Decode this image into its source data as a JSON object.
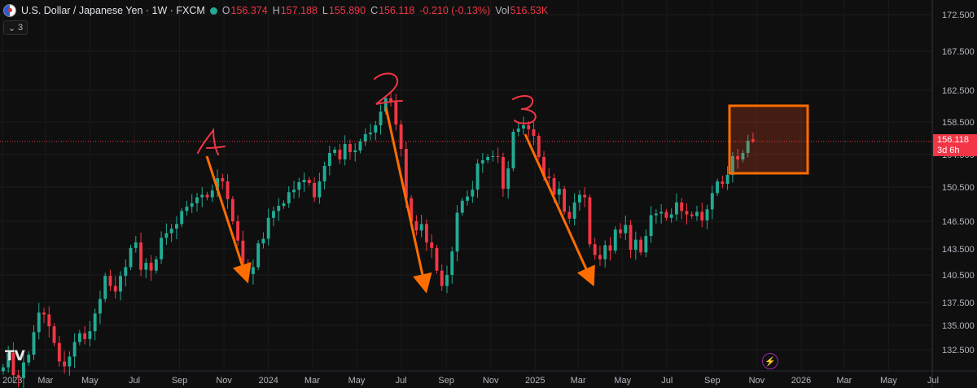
{
  "header": {
    "symbol": "U.S. Dollar / Japanese Yen · 1W · FXCM",
    "open_label": "O",
    "open": "156.374",
    "high_label": "H",
    "high": "157.188",
    "low_label": "L",
    "low": "155.890",
    "close_label": "C",
    "close": "156.118",
    "change": "-0.210 (-0.13%)",
    "vol_label": "Vol",
    "vol": "516.53K"
  },
  "indicator_toggle": {
    "count": "3"
  },
  "price_tag": {
    "price": "156.118",
    "countdown": "3d 6h"
  },
  "logo": {
    "text": "TV"
  },
  "annotations": {
    "labels": [
      "1",
      "2",
      "3"
    ]
  },
  "colors": {
    "up": "#22ab94",
    "down": "#f23645",
    "arrow": "#ff6d00",
    "box": "#ff6d00",
    "background": "#0f0f0f"
  },
  "chart_data": {
    "type": "candlestick",
    "title": "U.S. Dollar / Japanese Yen · 1W · FXCM",
    "y_ticks": [
      172.5,
      167.5,
      162.5,
      158.5,
      154.5,
      150.5,
      146.5,
      143.5,
      140.5,
      137.5,
      135.0,
      132.5
    ],
    "y_tick_labels": [
      "172.500",
      "167.500",
      "162.500",
      "158.500",
      "154.500",
      "150.500",
      "146.500",
      "143.500",
      "140.500",
      "137.500",
      "135.000",
      "132.500"
    ],
    "x_tick_labels": [
      "2023",
      "Mar",
      "May",
      "Jul",
      "Sep",
      "Nov",
      "2024",
      "Mar",
      "May",
      "Jul",
      "Sep",
      "Nov",
      "2025",
      "Mar",
      "May",
      "Jul",
      "Sep",
      "Nov",
      "2026",
      "Mar",
      "May",
      "Jul"
    ],
    "x_tick_dates": [
      "2023-01-01",
      "2023-03-01",
      "2023-05-01",
      "2023-07-01",
      "2023-09-01",
      "2023-11-01",
      "2024-01-01",
      "2024-03-01",
      "2024-05-01",
      "2024-07-01",
      "2024-09-01",
      "2024-11-01",
      "2025-01-01",
      "2025-03-01",
      "2025-05-01",
      "2025-07-01",
      "2025-09-01",
      "2025-11-01",
      "2026-01-01",
      "2026-03-01",
      "2026-05-01",
      "2026-07-01"
    ],
    "first_candle_date": "2023-01-02",
    "close_weekly": [
      130.7,
      132.2,
      129.9,
      129.6,
      131.2,
      132.0,
      134.3,
      136.4,
      136.2,
      134.9,
      133.2,
      131.3,
      130.8,
      131.8,
      133.3,
      134.2,
      133.6,
      134.4,
      136.3,
      137.9,
      140.4,
      139.3,
      138.7,
      140.4,
      141.4,
      143.6,
      144.2,
      141.1,
      141.9,
      141.0,
      142.3,
      144.7,
      145.2,
      145.7,
      146.2,
      147.7,
      148.2,
      148.6,
      149.3,
      149.6,
      149.3,
      150.1,
      151.6,
      151.2,
      149.1,
      146.5,
      144.4,
      141.8,
      140.6,
      141.4,
      144.1,
      144.6,
      146.9,
      147.7,
      148.3,
      148.6,
      149.9,
      150.2,
      151.1,
      151.4,
      151.0,
      149.3,
      151.2,
      153.1,
      154.7,
      155.1,
      153.9,
      155.8,
      154.8,
      155.0,
      156.1,
      157.0,
      157.2,
      158.1,
      159.8,
      161.5,
      161.0,
      158.2,
      155.2,
      149.2,
      146.5,
      145.5,
      146.2,
      144.2,
      143.6,
      141.0,
      139.3,
      140.5,
      143.2,
      147.5,
      148.9,
      149.4,
      150.2,
      153.4,
      153.8,
      154.2,
      154.3,
      154.2,
      150.3,
      152.8,
      157.3,
      157.7,
      158.1,
      157.6,
      156.8,
      154.2,
      151.8,
      151.6,
      149.6,
      150.3,
      147.6,
      146.8,
      148.7,
      149.6,
      149.3,
      144.0,
      142.8,
      142.3,
      143.9,
      143.3,
      145.6,
      145.2,
      146.1,
      143.4,
      144.5,
      143.1,
      144.9,
      147.2,
      147.4,
      147.6,
      146.9,
      147.3,
      148.7,
      147.7,
      147.3,
      147.1,
      147.6,
      146.6,
      147.9,
      149.8,
      151.2,
      150.9,
      152.0,
      154.3,
      153.9,
      154.7,
      156.2,
      156.1
    ],
    "range_high": 162.0,
    "range_low": 127.2,
    "last_ohlc": {
      "open": 156.374,
      "high": 157.188,
      "low": 155.89,
      "close": 156.118
    },
    "volume": "516.53K"
  }
}
